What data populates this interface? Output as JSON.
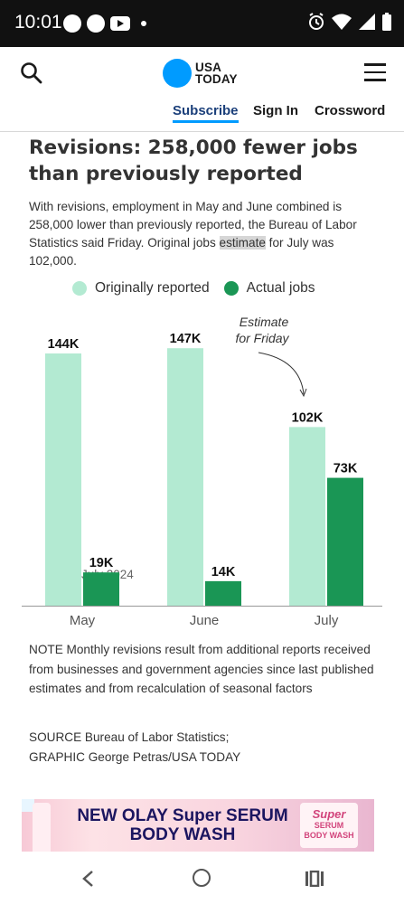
{
  "status_bar": {
    "time": "10:01",
    "icons_left": [
      "messenger-icon",
      "messenger-icon",
      "youtube-icon",
      "dot-icon"
    ],
    "icons_right": [
      "alarm-icon",
      "wifi-icon",
      "signal-icon",
      "battery-icon"
    ]
  },
  "header": {
    "logo_line1": "USA",
    "logo_line2": "TODAY",
    "nav": {
      "subscribe": "Subscribe",
      "signin": "Sign In",
      "crossword": "Crossword"
    }
  },
  "article": {
    "headline": "Revisions: 258,000 fewer jobs than previously reported",
    "dek_before": "With revisions, employment in May and June combined is 258,000 lower than previously reported, the Bureau of Labor Statistics said Friday. Original jobs ",
    "dek_highlight": "estimate",
    "dek_after": " for July was 102,000."
  },
  "chart_data": {
    "type": "bar",
    "categories": [
      "May",
      "June",
      "July"
    ],
    "series": [
      {
        "name": "Originally reported",
        "values": [
          144,
          147,
          102
        ],
        "labels": [
          "144K",
          "147K",
          "102K"
        ],
        "color": "#b3ead2"
      },
      {
        "name": "Actual jobs",
        "values": [
          19,
          14,
          73
        ],
        "labels": [
          "19K",
          "14K",
          "73K"
        ],
        "color": "#1a9655"
      }
    ],
    "annotation": {
      "line1": "Estimate",
      "line2": "for Friday"
    },
    "overlap_fragment": "July 2024",
    "ylim": [
      0,
      160
    ],
    "grid": false,
    "legend_position": "top"
  },
  "note": "NOTE Monthly revisions result from additional reports received from businesses and government agencies since last published estimates and from recalculation of seasonal factors",
  "source_line1": "SOURCE Bureau of Labor Statistics;",
  "source_line2": "GRAPHIC George Petras/USA TODAY",
  "ad": {
    "text_line1": "NEW OLAY Super SERUM",
    "text_line2": "BODY WASH",
    "badge_line1": "Super",
    "badge_line2": "SERUM",
    "badge_line3": "BODY WASH"
  }
}
